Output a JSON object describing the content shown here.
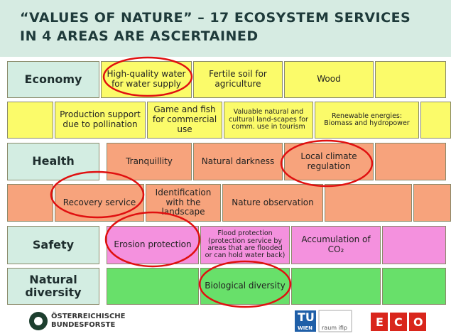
{
  "title": {
    "lines": [
      "“VALUES OF NATURE” – 17 ECOSYSTEM SERVICES",
      "IN 4 AREAS ARE ASCERTAINED"
    ]
  },
  "rows": [
    {
      "label": "Economy",
      "bricks": [
        "High-quality water for water supply",
        "Fertile soil for agriculture",
        "Wood"
      ]
    },
    {
      "bricks": [
        "Production support due to pollination",
        "Game and fish for commercial use",
        "Valuable natural and cultural land-scapes for comm. use in tourism",
        "Renewable energies: Biomass and hydropower"
      ]
    },
    {
      "label": "Health",
      "bricks": [
        "Tranquillity",
        "Natural darkness",
        "Local climate regulation"
      ]
    },
    {
      "bricks": [
        "Recovery service",
        "Identification with the landscape",
        "Nature observation"
      ]
    },
    {
      "label": "Safety",
      "bricks": [
        "Erosion protection",
        "Flood protection (protection service by areas that are flooded or can hold water back)",
        "Accumulation of CO₂"
      ]
    },
    {
      "label": "Natural diversity",
      "bricks": [
        "Biological diversity"
      ]
    }
  ],
  "logos": {
    "left": [
      "ÖSTERREICHISCHE",
      "BUNDESFORSTE"
    ],
    "tu": "TU",
    "wien": "WIEN",
    "raum": "raum ifip",
    "eco": [
      "E",
      "C",
      "O"
    ]
  }
}
